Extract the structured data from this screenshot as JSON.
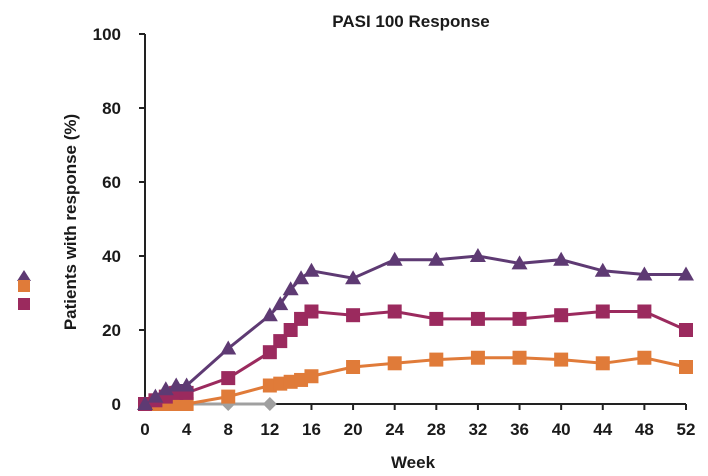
{
  "chart_data": {
    "type": "line",
    "title": "PASI 100 Response",
    "xlabel": "Week",
    "ylabel": "Patients with response (%)",
    "xlim": [
      0,
      52
    ],
    "ylim": [
      0,
      100
    ],
    "xticks": [
      0,
      4,
      8,
      12,
      16,
      20,
      24,
      28,
      32,
      36,
      40,
      44,
      48,
      52
    ],
    "yticks": [
      0,
      20,
      40,
      60,
      80,
      100
    ],
    "grid": false,
    "legend": "left",
    "series": [
      {
        "color": "#5e3a73",
        "marker": "triangle",
        "x": [
          0,
          1,
          2,
          3,
          4,
          8,
          12,
          13,
          14,
          15,
          16,
          20,
          24,
          28,
          32,
          36,
          40,
          44,
          48,
          52
        ],
        "y": [
          0,
          2,
          4,
          5,
          5,
          15,
          24,
          27,
          31,
          34,
          36,
          34,
          39,
          39,
          40,
          38,
          39,
          36,
          35,
          35
        ]
      },
      {
        "color": "#9b2a5e",
        "marker": "square",
        "x": [
          0,
          1,
          2,
          3,
          4,
          8,
          12,
          13,
          14,
          15,
          16,
          20,
          24,
          28,
          32,
          36,
          40,
          44,
          48,
          52
        ],
        "y": [
          0,
          1,
          2,
          3,
          3,
          7,
          14,
          17,
          20,
          23,
          25,
          24,
          25,
          23,
          23,
          23,
          24,
          25,
          25,
          20
        ]
      },
      {
        "color": "#e07b39",
        "marker": "square",
        "x": [
          0,
          1,
          2,
          3,
          4,
          8,
          12,
          13,
          14,
          15,
          16,
          20,
          24,
          28,
          32,
          36,
          40,
          44,
          48,
          52
        ],
        "y": [
          0,
          0,
          0,
          0,
          0,
          2,
          5,
          5.5,
          6,
          6.5,
          7.5,
          10,
          11,
          12,
          12.5,
          12.5,
          12,
          11,
          12.5,
          10
        ]
      },
      {
        "color": "#a0a0a0",
        "marker": "diamond",
        "x": [
          0,
          1,
          2,
          3,
          4,
          8,
          12
        ],
        "y": [
          0,
          0,
          0,
          0,
          0,
          0,
          0
        ]
      }
    ]
  }
}
